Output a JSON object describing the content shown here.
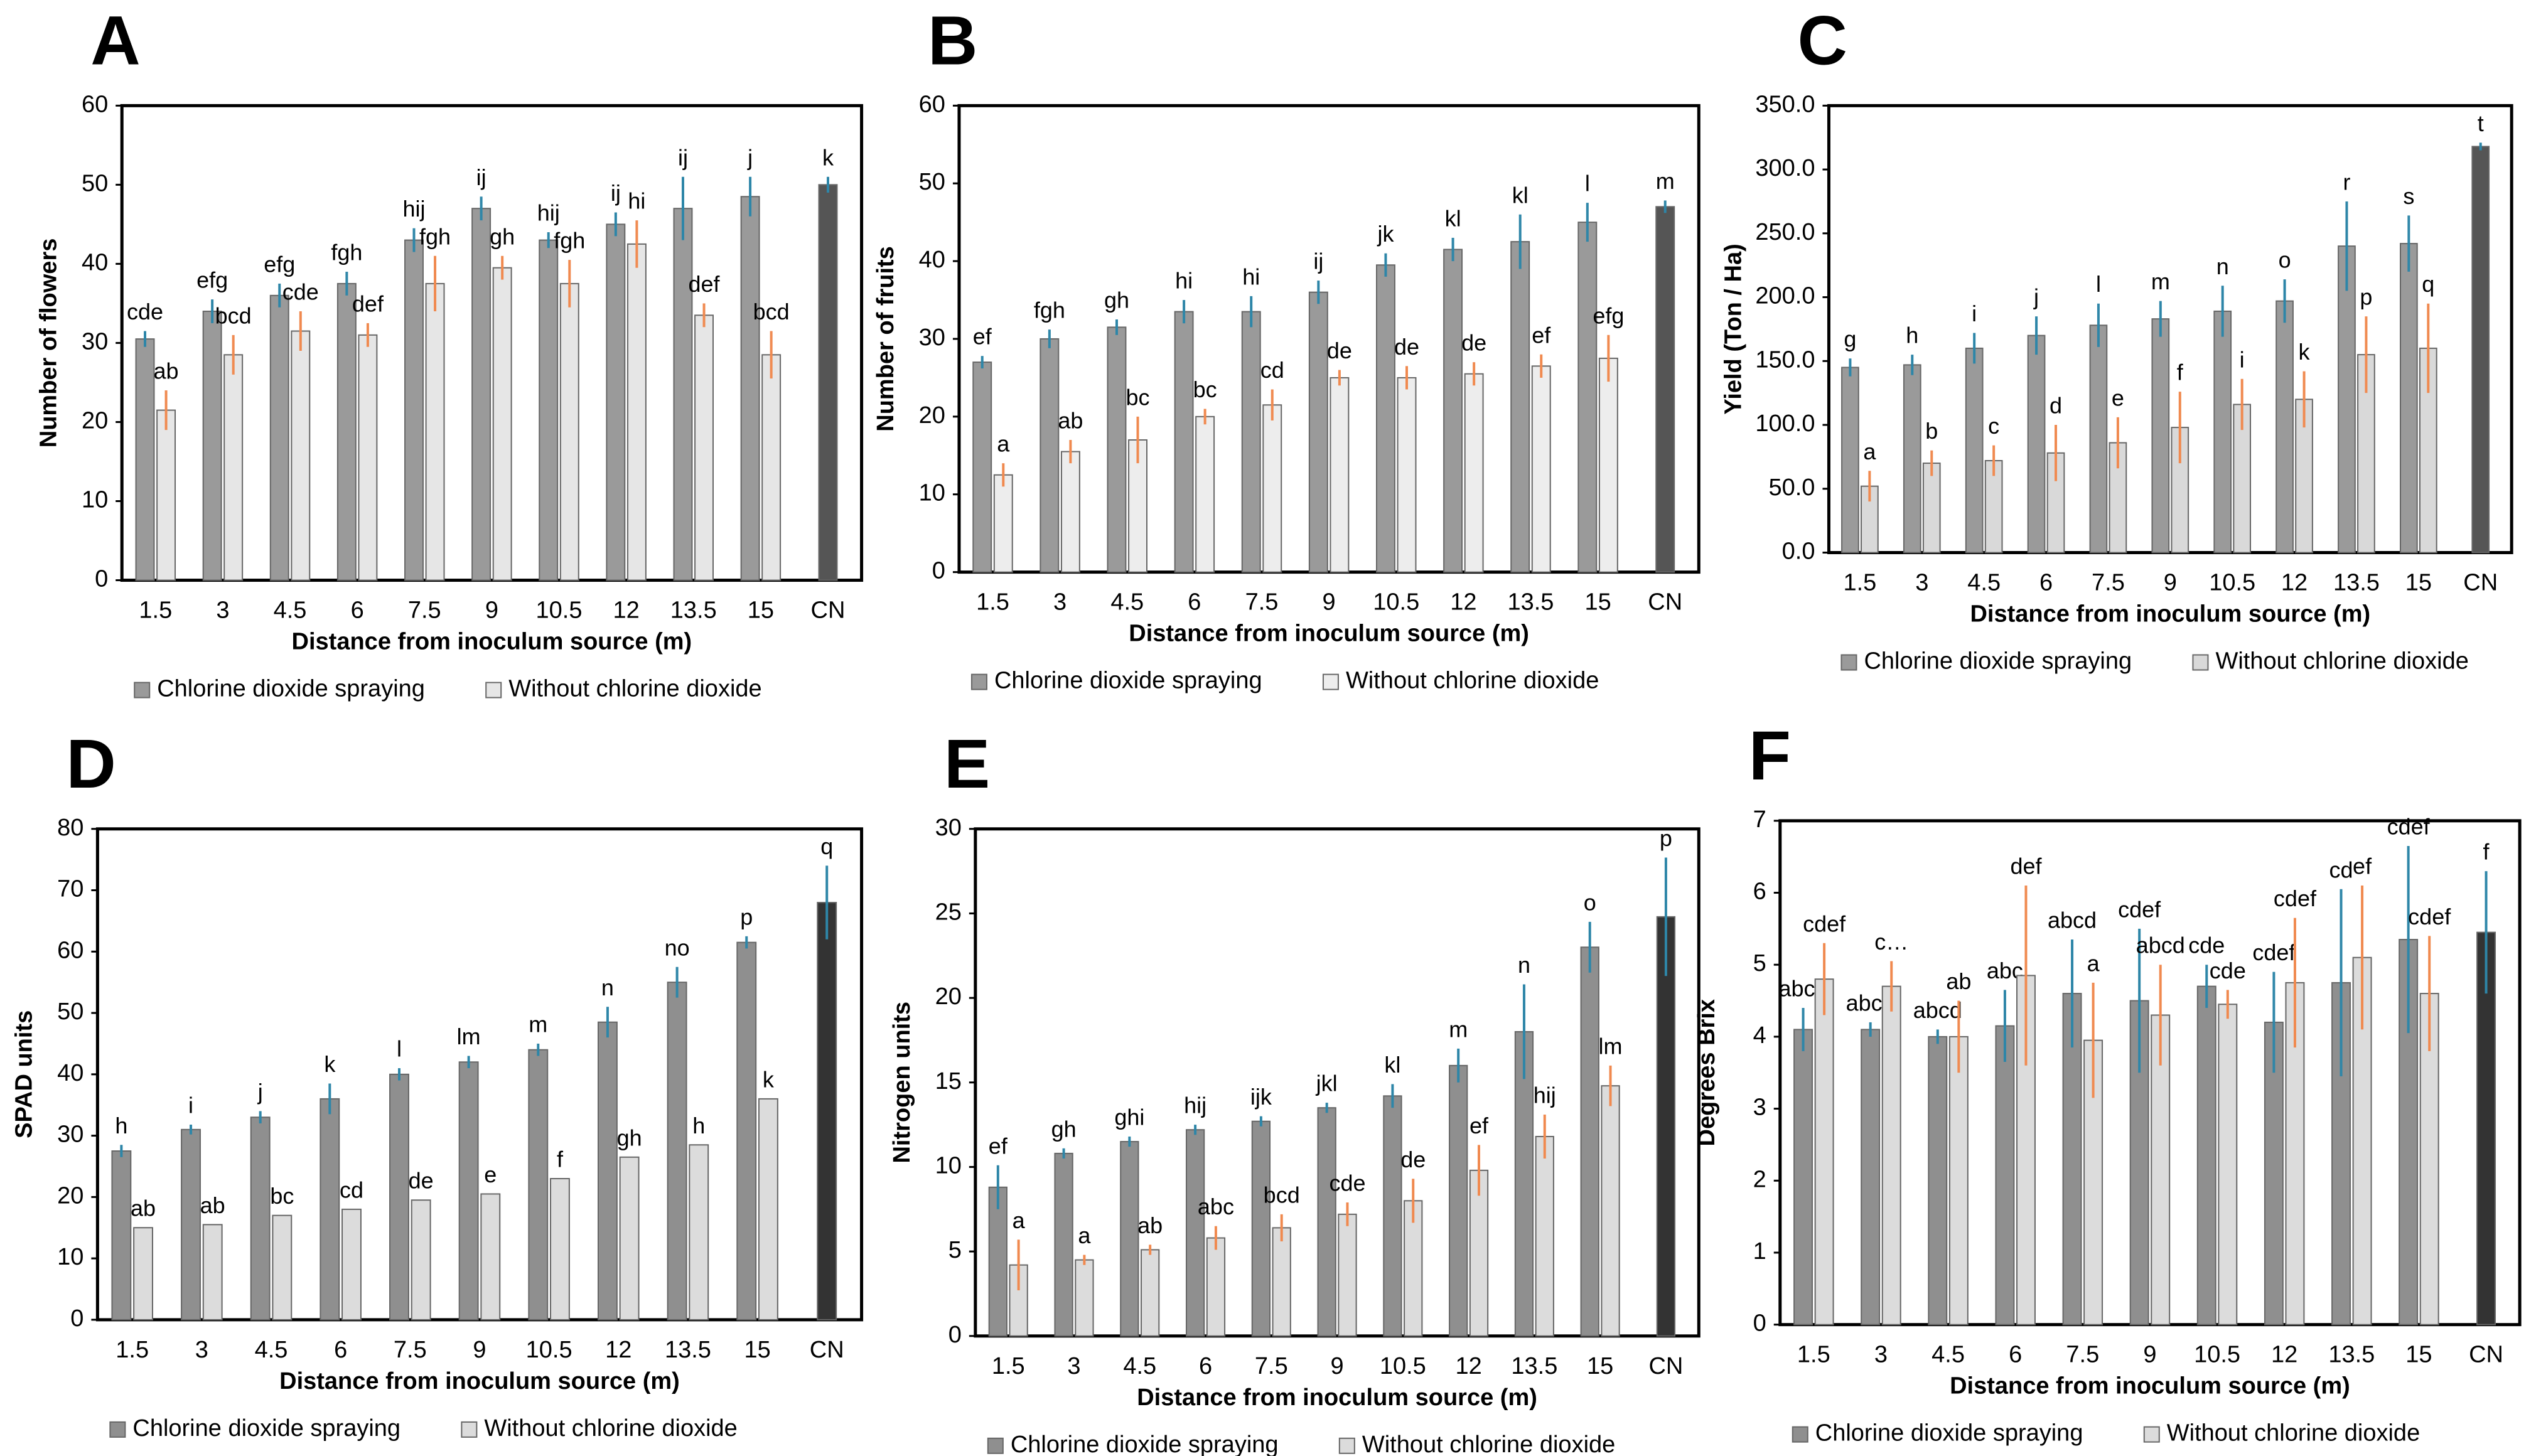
{
  "chart_data": [
    {
      "type": "bar",
      "panel": "A",
      "ylabel": "Number of flowers",
      "xlabel": "Distance from inoculum source (m)",
      "categories": [
        "1.5",
        "3",
        "4.5",
        "6",
        "7.5",
        "9",
        "10.5",
        "12",
        "13.5",
        "15",
        "CN"
      ],
      "ylim": [
        0,
        60
      ],
      "yticks": [
        0,
        10,
        20,
        30,
        40,
        50,
        60
      ],
      "control_color": "#555555",
      "series": [
        {
          "name": "Chlorine dioxide spraying",
          "color": "#9a9a9a",
          "error_color": "#2e86a8",
          "values": [
            30.5,
            34,
            36,
            37.5,
            43,
            47,
            43,
            45,
            47,
            48.5,
            50
          ],
          "errors": [
            1,
            1.5,
            1.5,
            1.5,
            1.5,
            1.5,
            1,
            1.5,
            4,
            2.5,
            1
          ],
          "labels": [
            "cde",
            "efg",
            "efg",
            "fgh",
            "hij",
            "ij",
            "hij",
            "ij",
            "ij",
            "j",
            "k"
          ]
        },
        {
          "name": "Without chlorine dioxide",
          "color": "#e6e6e6",
          "error_color": "#f08a50",
          "values": [
            21.5,
            28.5,
            31.5,
            31,
            37.5,
            39.5,
            37.5,
            42.5,
            33.5,
            28.5,
            null
          ],
          "errors": [
            2.5,
            2.5,
            2.5,
            1.5,
            3.5,
            1.5,
            3,
            3,
            1.5,
            3,
            null
          ],
          "labels": [
            "ab",
            "bcd",
            "cde",
            "def",
            "fgh",
            "gh",
            "fgh",
            "hi",
            "def",
            "bcd",
            null
          ]
        }
      ]
    },
    {
      "type": "bar",
      "panel": "B",
      "ylabel": "Number of fruits",
      "xlabel": "Distance from inoculum source (m)",
      "categories": [
        "1.5",
        "3",
        "4.5",
        "6",
        "7.5",
        "9",
        "10.5",
        "12",
        "13.5",
        "15",
        "CN"
      ],
      "ylim": [
        0,
        60
      ],
      "yticks": [
        0,
        10,
        20,
        30,
        40,
        50,
        60
      ],
      "control_color": "#555555",
      "series": [
        {
          "name": "Chlorine dioxide spraying",
          "color": "#9a9a9a",
          "error_color": "#2e86a8",
          "values": [
            27,
            30,
            31.5,
            33.5,
            33.5,
            36,
            39.5,
            41.5,
            42.5,
            45,
            47
          ],
          "errors": [
            0.8,
            1.2,
            1,
            1.5,
            2,
            1.5,
            1.5,
            1.5,
            3.5,
            2.5,
            0.8
          ],
          "labels": [
            "ef",
            "fgh",
            "gh",
            "hi",
            "hi",
            "ij",
            "jk",
            "kl",
            "kl",
            "l",
            "m"
          ]
        },
        {
          "name": "Without chlorine dioxide",
          "color": "#ededed",
          "error_color": "#f08a50",
          "values": [
            12.5,
            15.5,
            17,
            20,
            21.5,
            25,
            25,
            25.5,
            26.5,
            27.5,
            null
          ],
          "errors": [
            1.5,
            1.5,
            3,
            1,
            2,
            1,
            1.5,
            1.5,
            1.5,
            3,
            null
          ],
          "labels": [
            "a",
            "ab",
            "bc",
            "bc",
            "cd",
            "de",
            "de",
            "de",
            "ef",
            "efg",
            null
          ]
        }
      ]
    },
    {
      "type": "bar",
      "panel": "C",
      "ylabel": "Yield (Ton / Ha)",
      "xlabel": "Distance from inoculum source (m)",
      "categories": [
        "1.5",
        "3",
        "4.5",
        "6",
        "7.5",
        "9",
        "10.5",
        "12",
        "13.5",
        "15",
        "CN"
      ],
      "ylim": [
        0,
        350
      ],
      "yticks": [
        {
          "value": 0,
          "label": "0.0"
        },
        {
          "value": 50,
          "label": "50.0"
        },
        {
          "value": 100,
          "label": "100.0"
        },
        {
          "value": 150,
          "label": "150.0"
        },
        {
          "value": 200,
          "label": "200.0"
        },
        {
          "value": 250,
          "label": "250.0"
        },
        {
          "value": 300,
          "label": "300.0"
        },
        {
          "value": 350,
          "label": "350.0"
        }
      ],
      "control_color": "#555555",
      "series": [
        {
          "name": "Chlorine dioxide spraying",
          "color": "#9a9a9a",
          "error_color": "#2e86a8",
          "values": [
            145,
            147,
            160,
            170,
            178,
            183,
            189,
            197,
            240,
            242,
            318
          ],
          "errors": [
            7,
            8,
            12,
            15,
            17,
            14,
            20,
            17,
            35,
            22,
            3
          ],
          "labels": [
            "g",
            "h",
            "i",
            "j",
            "l",
            "m",
            "n",
            "o",
            "r",
            "s",
            "t"
          ]
        },
        {
          "name": "Without chlorine dioxide",
          "color": "#d9d9d9",
          "error_color": "#f08a50",
          "values": [
            52,
            70,
            72,
            78,
            86,
            98,
            116,
            120,
            155,
            160,
            null
          ],
          "errors": [
            12,
            10,
            12,
            22,
            20,
            28,
            20,
            22,
            30,
            35,
            null
          ],
          "labels": [
            "a",
            "b",
            "c",
            "d",
            "e",
            "f",
            "i",
            "k",
            "p",
            "q",
            null
          ]
        }
      ]
    },
    {
      "type": "bar",
      "panel": "D",
      "ylabel": "SPAD units",
      "xlabel": "Distance from inoculum source (m)",
      "categories": [
        "1.5",
        "3",
        "4.5",
        "6",
        "7.5",
        "9",
        "10.5",
        "12",
        "13.5",
        "15",
        "CN"
      ],
      "ylim": [
        0,
        80
      ],
      "yticks": [
        0,
        10,
        20,
        30,
        40,
        50,
        60,
        70,
        80
      ],
      "control_color": "#333333",
      "series": [
        {
          "name": "Chlorine dioxide spraying",
          "color": "#8f8f8f",
          "error_color": "#2e86a8",
          "values": [
            27.5,
            31,
            33,
            36,
            40,
            42,
            44,
            48.5,
            55,
            61.5,
            68
          ],
          "errors": [
            1,
            0.8,
            1,
            2.5,
            1,
            1,
            1,
            2.5,
            2.5,
            1,
            6
          ],
          "labels": [
            "h",
            "i",
            "j",
            "k",
            "l",
            "lm",
            "m",
            "n",
            "no",
            "p",
            "q"
          ]
        },
        {
          "name": "Without chlorine dioxide",
          "color": "#dcdcdc",
          "error_color": "#f08a50",
          "values": [
            15,
            15.5,
            17,
            18,
            19.5,
            20.5,
            23,
            26.5,
            28.5,
            36,
            null
          ],
          "labels": [
            "ab",
            "ab",
            "bc",
            "cd",
            "de",
            "e",
            "f",
            "gh",
            "h",
            "k",
            null
          ]
        }
      ]
    },
    {
      "type": "bar",
      "panel": "E",
      "ylabel": "Nitrogen units",
      "xlabel": "Distance from inoculum source (m)",
      "categories": [
        "1.5",
        "3",
        "4.5",
        "6",
        "7.5",
        "9",
        "10.5",
        "12",
        "13.5",
        "15",
        "CN"
      ],
      "ylim": [
        0,
        30
      ],
      "yticks": [
        0,
        5,
        10,
        15,
        20,
        25,
        30
      ],
      "control_color": "#333333",
      "series": [
        {
          "name": "Chlorine dioxide spraying",
          "color": "#8f8f8f",
          "error_color": "#2e86a8",
          "values": [
            8.8,
            10.8,
            11.5,
            12.2,
            12.7,
            13.5,
            14.2,
            16,
            18,
            23,
            24.8
          ],
          "errors": [
            1.3,
            0.3,
            0.3,
            0.3,
            0.3,
            0.3,
            0.7,
            1,
            2.8,
            1.5,
            3.5
          ],
          "labels": [
            "ef",
            "gh",
            "ghi",
            "hij",
            "ijk",
            "jkl",
            "kl",
            "m",
            "n",
            "o",
            "p"
          ]
        },
        {
          "name": "Without chlorine dioxide",
          "color": "#dcdcdc",
          "error_color": "#f08a50",
          "values": [
            4.2,
            4.5,
            5.1,
            5.8,
            6.4,
            7.2,
            8,
            9.8,
            11.8,
            14.8,
            null
          ],
          "errors": [
            1.5,
            0.3,
            0.3,
            0.7,
            0.8,
            0.7,
            1.3,
            1.5,
            1.3,
            1.2,
            null
          ],
          "labels": [
            "a",
            "a",
            "ab",
            "abc",
            "bcd",
            "cde",
            "de",
            "ef",
            "hij",
            "lm",
            null
          ]
        }
      ]
    },
    {
      "type": "bar",
      "panel": "F",
      "ylabel": "Degrees Brix",
      "xlabel": "Distance from inoculum source (m)",
      "categories": [
        "1.5",
        "3",
        "4.5",
        "6",
        "7.5",
        "9",
        "10.5",
        "12",
        "13.5",
        "15",
        "CN"
      ],
      "ylim": [
        0,
        7
      ],
      "yticks": [
        0,
        1,
        2,
        3,
        4,
        5,
        6,
        7
      ],
      "control_color": "#333333",
      "series": [
        {
          "name": "Chlorine dioxide spraying",
          "color": "#8f8f8f",
          "error_color": "#2e86a8",
          "values": [
            4.1,
            4.1,
            4.0,
            4.15,
            4.6,
            4.5,
            4.7,
            4.2,
            4.75,
            5.35,
            5.45
          ],
          "errors": [
            0.3,
            0.1,
            0.1,
            0.5,
            0.75,
            1.0,
            0.3,
            0.7,
            1.3,
            1.3,
            0.85
          ],
          "labels": [
            "abcd",
            "abcd",
            "abcd",
            "abc",
            "abcd",
            "cdef",
            "cde",
            "cdef",
            "cd",
            "cdef",
            "f"
          ]
        },
        {
          "name": "Without chlorine dioxide",
          "color": "#dcdcdc",
          "error_color": "#f08a50",
          "values": [
            4.8,
            4.7,
            4.0,
            4.85,
            3.95,
            4.3,
            4.45,
            4.75,
            5.1,
            4.6,
            null
          ],
          "errors": [
            0.5,
            0.35,
            0.5,
            1.25,
            0.8,
            0.7,
            0.2,
            0.9,
            1.0,
            0.8,
            null
          ],
          "labels": [
            "cdef",
            "c…",
            "ab",
            "def",
            "a",
            "abcd",
            "cde",
            "cdef",
            "ef",
            "cdef",
            null
          ]
        }
      ]
    }
  ]
}
